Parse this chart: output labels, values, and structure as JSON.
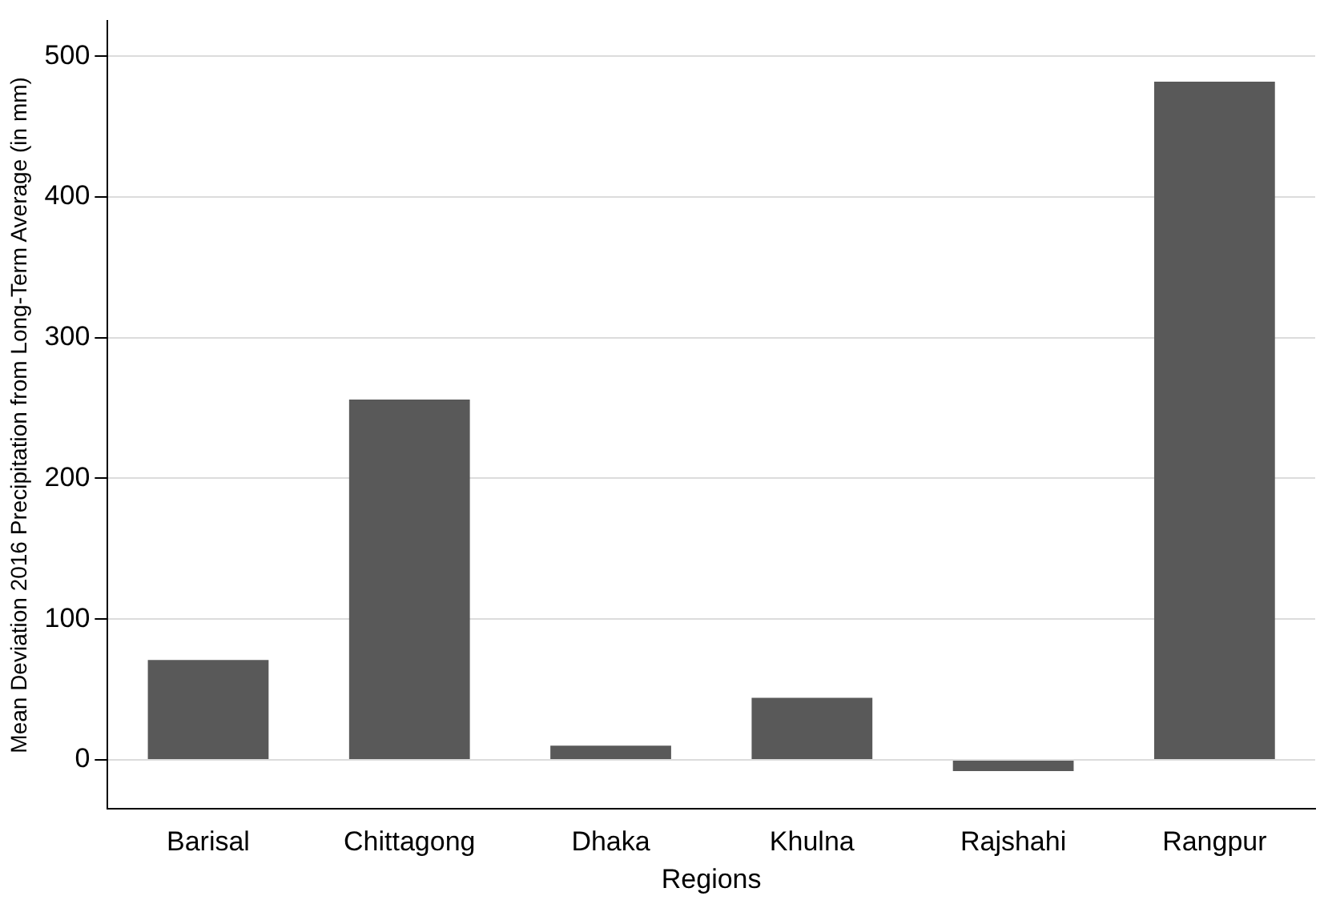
{
  "chart_data": {
    "type": "bar",
    "xlabel": "Regions",
    "ylabel": "Mean Deviation 2016 Precipitation from Long-Term Average (in mm)",
    "categories": [
      "Barisal",
      "Chittagong",
      "Dhaka",
      "Khulna",
      "Rajshahi",
      "Rangpur"
    ],
    "values": [
      71,
      256,
      10,
      44,
      -8,
      482
    ],
    "color": "#595959",
    "ylim": [
      -35,
      525
    ],
    "yticks": [
      0,
      100,
      200,
      300,
      400,
      500
    ],
    "grid": "y"
  }
}
